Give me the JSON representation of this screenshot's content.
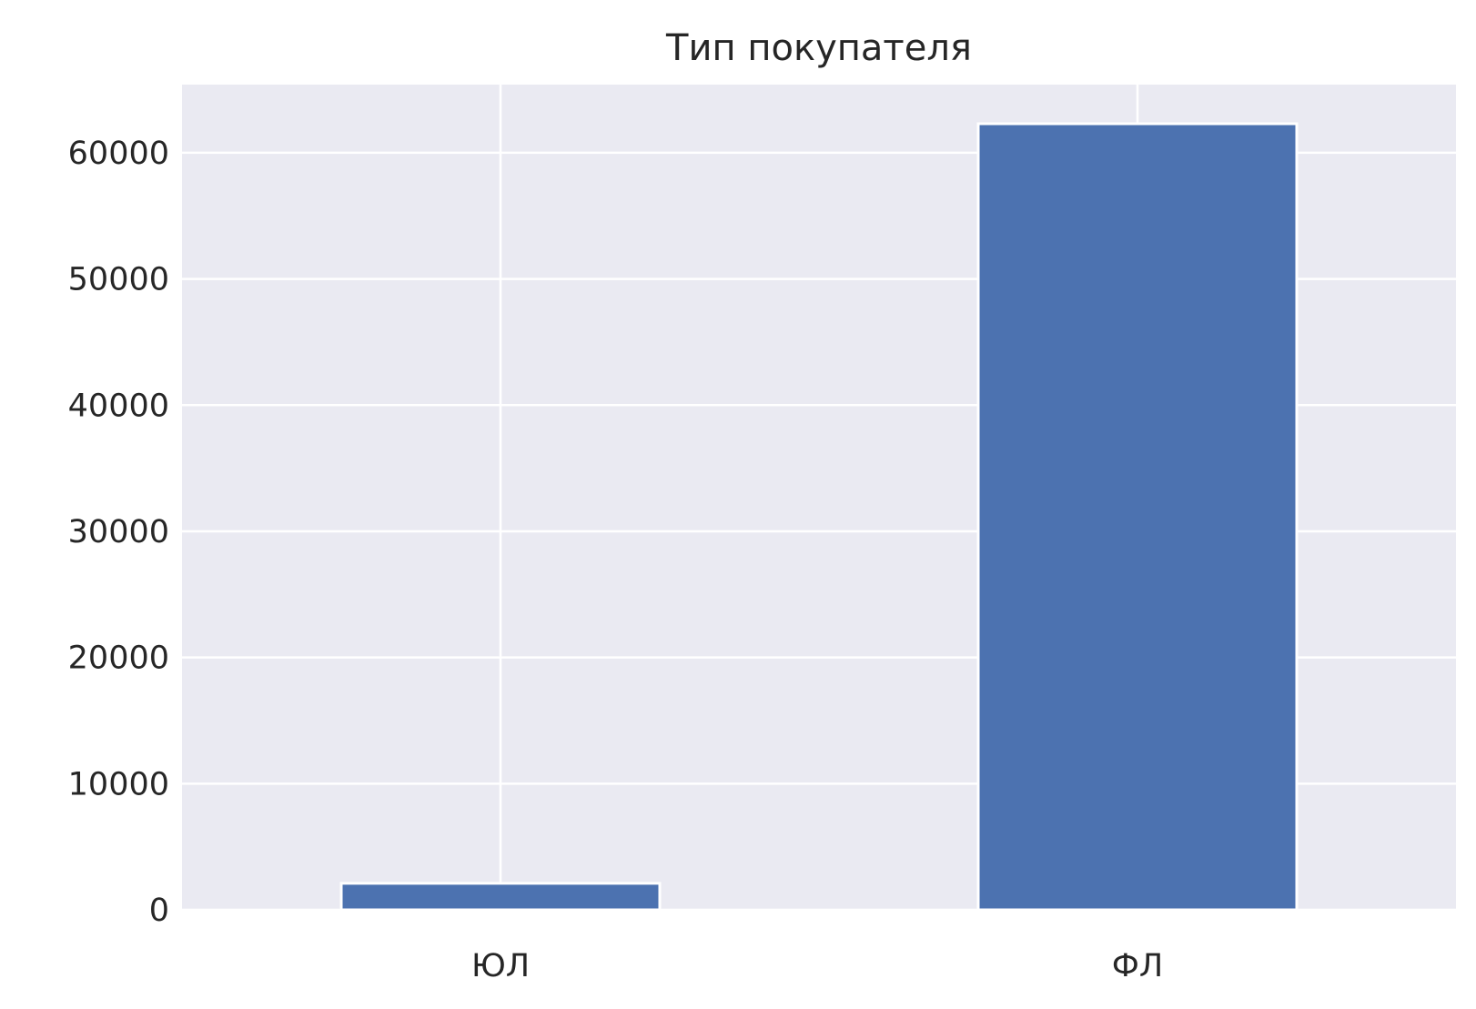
{
  "chart_data": {
    "type": "bar",
    "title": "Тип покупателя",
    "xlabel": "",
    "ylabel": "",
    "categories": [
      "ЮЛ",
      "ФЛ"
    ],
    "values": [
      2100,
      62300
    ],
    "ylim": [
      0,
      65400
    ],
    "yticks": [
      0,
      10000,
      20000,
      30000,
      40000,
      50000,
      60000
    ],
    "ytick_labels": [
      "0",
      "10000",
      "20000",
      "30000",
      "40000",
      "50000",
      "60000"
    ],
    "grid": true,
    "legend": false,
    "colors": {
      "bar": "#4c72b0",
      "plot_background": "#eaeaf2",
      "grid": "#ffffff",
      "text": "#262626"
    }
  }
}
